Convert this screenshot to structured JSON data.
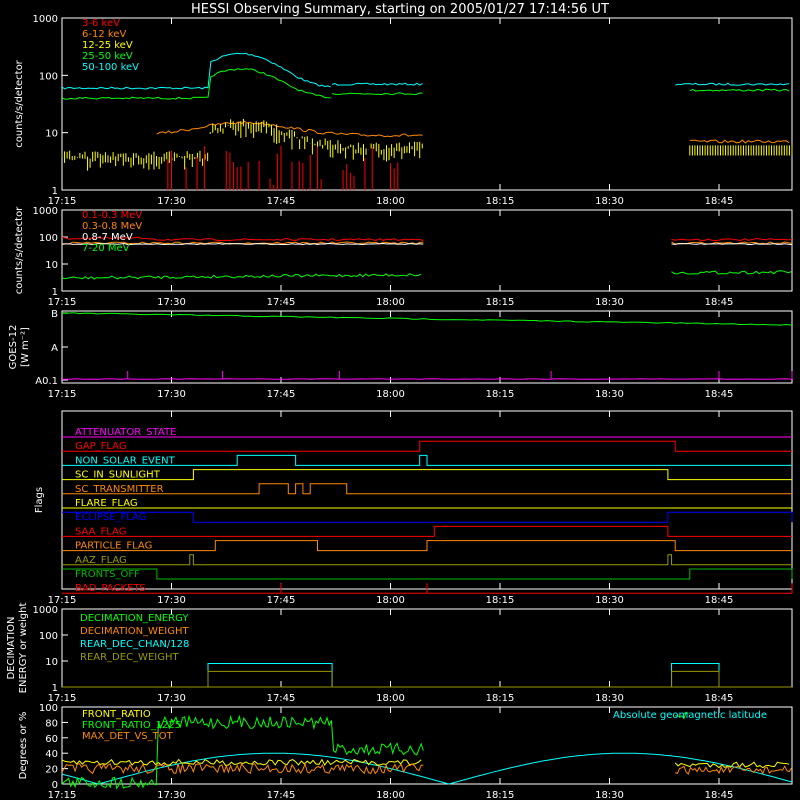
{
  "title": "HESSI Observing Summary, starting on 2005/01/27 17:14:56 UT",
  "colors": {
    "bg": "#000000",
    "axes": "#ffffff",
    "red": "#ff0000",
    "orange": "#ff8800",
    "yellow": "#ffff00",
    "green": "#00ff00",
    "cyan": "#00ffff",
    "magenta": "#ff00ff",
    "blue": "#0000ff",
    "olive": "#999900",
    "darkgreen": "#00bb00",
    "darkorange": "#cc6600"
  },
  "chart_data": [
    {
      "type": "line",
      "id": "lc_low",
      "ylabel": "counts/s/detector",
      "yscale": "log",
      "ylim": [
        1,
        1000
      ],
      "ytick_labels": [
        "1",
        "10",
        "100",
        "1000"
      ],
      "xtick_labels": [
        "17:15",
        "17:30",
        "17:45",
        "18:00",
        "18:15",
        "18:30",
        "18:45"
      ],
      "series": [
        {
          "name": "3-6 keV",
          "color": "#ff0000"
        },
        {
          "name": "6-12 keV",
          "color": "#ff8800"
        },
        {
          "name": "12-25 keV",
          "color": "#ffff00"
        },
        {
          "name": "25-50 keV",
          "color": "#00ff00"
        },
        {
          "name": "50-100 keV",
          "color": "#00ffff"
        }
      ]
    },
    {
      "type": "line",
      "id": "lc_high",
      "ylabel": "counts/s/detector",
      "yscale": "log",
      "ylim": [
        1,
        1000
      ],
      "ytick_labels": [
        "1",
        "10",
        "100",
        "1000"
      ],
      "xtick_labels": [
        "17:15",
        "17:30",
        "17:45",
        "18:00",
        "18:15",
        "18:30",
        "18:45"
      ],
      "series": [
        {
          "name": "0.1-0.3 MeV",
          "color": "#ff0000"
        },
        {
          "name": "0.3-0.8 MeV",
          "color": "#ff8800"
        },
        {
          "name": "0.8-7 MeV",
          "color": "#ffffff"
        },
        {
          "name": "7-20 MeV",
          "color": "#00ff00"
        }
      ]
    },
    {
      "type": "line",
      "id": "goes",
      "ylabel": "GOES-12",
      "ylabel2": "[W m⁻²]",
      "ytick_labels": [
        "A0.1",
        "A",
        "B"
      ],
      "xtick_labels": [
        "17:15",
        "17:30",
        "17:45",
        "18:00",
        "18:15",
        "18:30",
        "18:45"
      ]
    },
    {
      "type": "line",
      "id": "flags",
      "ylabel": "Flags",
      "xtick_labels": [
        "17:15",
        "17:30",
        "17:45",
        "18:00",
        "18:15",
        "18:30",
        "18:45"
      ],
      "flags": [
        {
          "name": "ATTENUATOR_STATE",
          "color": "#ff00ff"
        },
        {
          "name": "GAP_FLAG",
          "color": "#ff0000"
        },
        {
          "name": "NON_SOLAR_EVENT",
          "color": "#00ffff"
        },
        {
          "name": "SC_IN_SUNLIGHT",
          "color": "#ffff00"
        },
        {
          "name": "SC_TRANSMITTER",
          "color": "#ff8800"
        },
        {
          "name": "FLARE_FLAG",
          "color": "#ffff00"
        },
        {
          "name": "ECLIPSE_FLAG",
          "color": "#0000ff"
        },
        {
          "name": "SAA_FLAG",
          "color": "#ff0000"
        },
        {
          "name": "PARTICLE_FLAG",
          "color": "#ff8800"
        },
        {
          "name": "AAZ_FLAG",
          "color": "#999900"
        },
        {
          "name": "FRONTS_OFF",
          "color": "#00bb00"
        },
        {
          "name": "BAD_PACKETS",
          "color": "#ff0000"
        }
      ]
    },
    {
      "type": "line",
      "id": "decim",
      "ylabel": "DECIMATION",
      "ylabel2": "ENERGY or weight",
      "yscale": "log",
      "ylim": [
        1,
        1000
      ],
      "ytick_labels": [
        "1",
        "10",
        "100",
        "1000"
      ],
      "xtick_labels": [
        "17:15",
        "17:30",
        "17:45",
        "18:00",
        "18:15",
        "18:30",
        "18:45"
      ],
      "series": [
        {
          "name": "DECIMATION_ENERGY",
          "color": "#00ff00"
        },
        {
          "name": "DECIMATION_WEIGHT",
          "color": "#ff8800"
        },
        {
          "name": "REAR_DEC_CHAN/128",
          "color": "#00ffff"
        },
        {
          "name": "REAR_DEC_WEIGHT",
          "color": "#999900"
        }
      ]
    },
    {
      "type": "line",
      "id": "ratio",
      "ylabel": "Degrees or %",
      "ylim": [
        0,
        100
      ],
      "ytick_labels": [
        "0",
        "20",
        "40",
        "60",
        "80",
        "100"
      ],
      "xtick_labels": [
        "17:15",
        "17:30",
        "17:45",
        "18:00",
        "18:15",
        "18:30",
        "18:45"
      ],
      "series": [
        {
          "name": "FRONT_RATIO",
          "color": "#ffff00"
        },
        {
          "name": "FRONT_RATIO_1225",
          "color": "#00ff00"
        },
        {
          "name": "MAX_DET_VS_TOT",
          "color": "#ff8800"
        },
        {
          "name": "Absolute geomagnetic latitude",
          "color": "#00ffff"
        }
      ]
    }
  ]
}
